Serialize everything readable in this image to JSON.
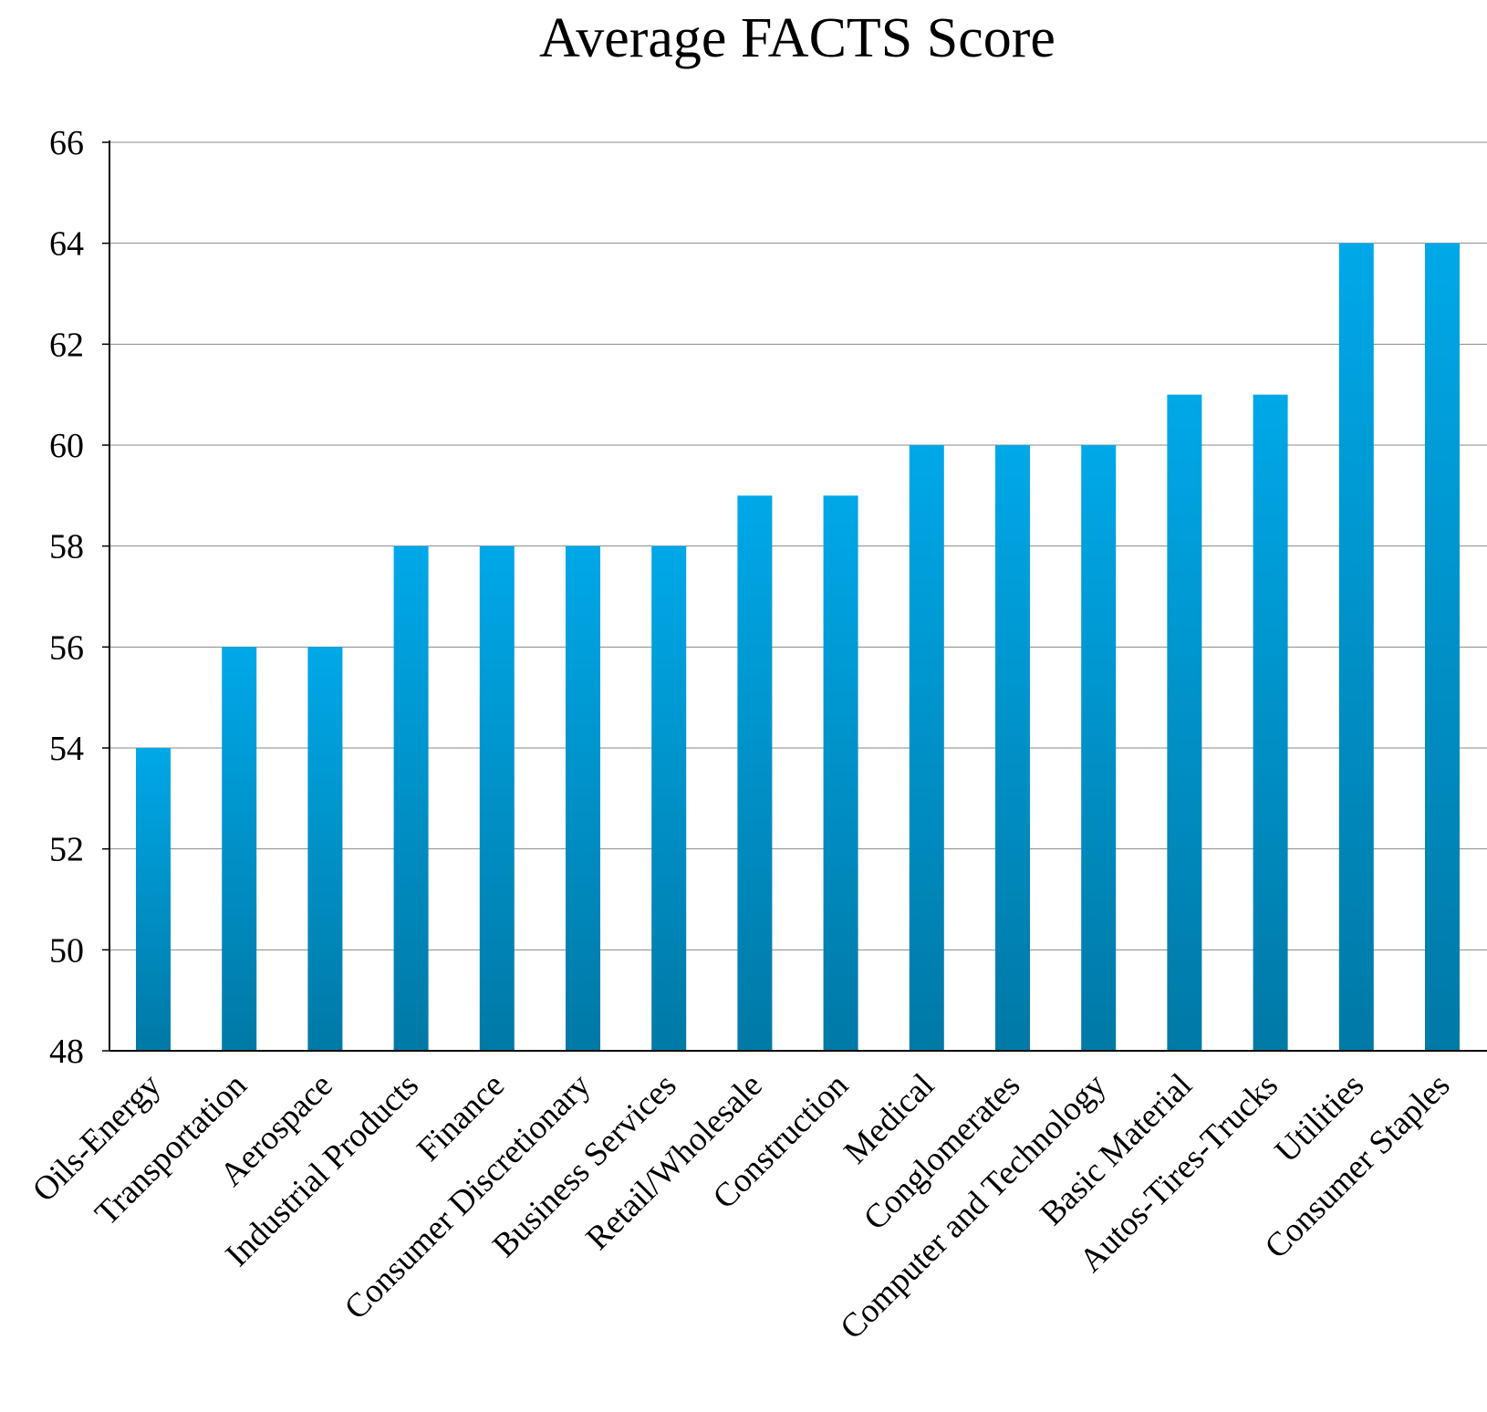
{
  "chart_data": {
    "type": "bar",
    "title": "Average FACTS Score",
    "xlabel": "",
    "ylabel": "",
    "categories": [
      "Oils-Energy",
      "Transportation",
      "Aerospace",
      "Industrial Products",
      "Finance",
      "Consumer Discretionary",
      "Business Services",
      "Retail/Wholesale",
      "Construction",
      "Medical",
      "Conglomerates",
      "Computer and Technology",
      "Basic Material",
      "Autos-Tires-Trucks",
      "Utilities",
      "Consumer Staples"
    ],
    "values": [
      54,
      56,
      56,
      58,
      58,
      58,
      58,
      59,
      59,
      60,
      60,
      60,
      61,
      61,
      64,
      64
    ],
    "ylim": [
      48,
      66
    ],
    "yticks": [
      48,
      50,
      52,
      54,
      56,
      58,
      60,
      62,
      64,
      66
    ],
    "grid": true,
    "legend": "none",
    "colors": {
      "bar_top": "#00a8e8",
      "bar_bottom": "#0079a6",
      "grid": "#888888",
      "axis": "#000000"
    }
  }
}
